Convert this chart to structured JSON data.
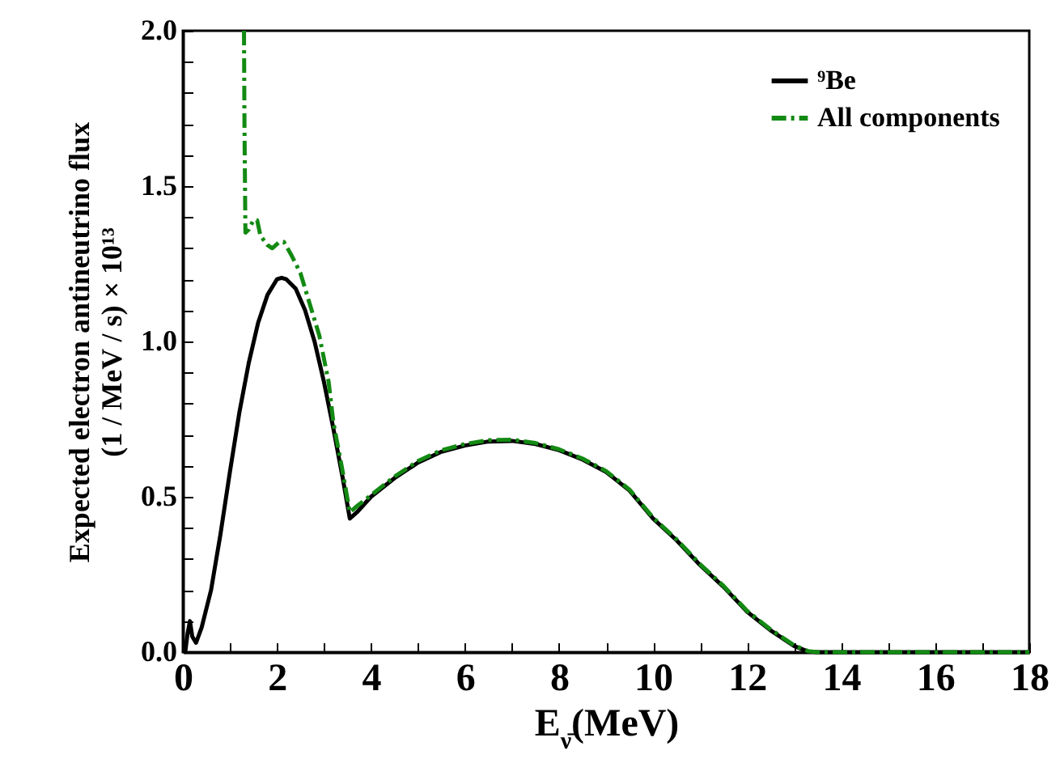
{
  "chart_data": {
    "type": "line",
    "xlabel": "E$_{ν̄}$(MeV)",
    "ylabel": "Expected electron antineutrino flux\n(1 / MeV / s) × 10¹³",
    "xlim": [
      0,
      18
    ],
    "ylim": [
      0,
      2.0
    ],
    "xticks": [
      0,
      {
        "value": 1,
        "label": null
      },
      2,
      {
        "value": 3,
        "label": null
      },
      4,
      {
        "value": 5,
        "label": null
      },
      6,
      {
        "value": 7,
        "label": null
      },
      8,
      {
        "value": 9,
        "label": null
      },
      10,
      {
        "value": 11,
        "label": null
      },
      12,
      {
        "value": 13,
        "label": null
      },
      14,
      {
        "value": 15,
        "label": null
      },
      16,
      {
        "value": 17,
        "label": null
      },
      18
    ],
    "yticks": [
      {
        "value": 0,
        "label": "0.0"
      },
      {
        "value": 0.1,
        "label": null
      },
      {
        "value": 0.2,
        "label": null
      },
      {
        "value": 0.3,
        "label": null
      },
      {
        "value": 0.4,
        "label": null
      },
      0.5,
      {
        "value": 0.6,
        "label": null
      },
      {
        "value": 0.7,
        "label": null
      },
      {
        "value": 0.8,
        "label": null
      },
      {
        "value": 0.9,
        "label": null
      },
      {
        "value": 1,
        "label": "1.0"
      },
      {
        "value": 1.1,
        "label": null
      },
      {
        "value": 1.2,
        "label": null
      },
      {
        "value": 1.3,
        "label": null
      },
      {
        "value": 1.4,
        "label": null
      },
      1.5,
      {
        "value": 1.6,
        "label": null
      },
      {
        "value": 1.7,
        "label": null
      },
      {
        "value": 1.8,
        "label": null
      },
      {
        "value": 1.9,
        "label": null
      },
      {
        "value": 2,
        "label": "2.0"
      }
    ],
    "grid": false,
    "legend": "top right",
    "marker": "none",
    "series": [
      {
        "name": "⁹Be",
        "color": "#000000",
        "line_style": "solid",
        "x": [
          0.05,
          0.1,
          0.15,
          0.2,
          0.28,
          0.4,
          0.6,
          0.8,
          1.0,
          1.2,
          1.4,
          1.6,
          1.8,
          2.0,
          2.1,
          2.2,
          2.4,
          2.6,
          2.8,
          3.0,
          3.2,
          3.4,
          3.55,
          3.7,
          4.0,
          4.5,
          5.0,
          5.5,
          6.0,
          6.5,
          7.0,
          7.5,
          8.0,
          8.5,
          9.0,
          9.5,
          10.0,
          10.5,
          11.0,
          11.5,
          12.0,
          12.5,
          13.0,
          13.3,
          13.5,
          18
        ],
        "values": [
          0,
          0.06,
          0.1,
          0.05,
          0.03,
          0.08,
          0.2,
          0.38,
          0.58,
          0.77,
          0.93,
          1.06,
          1.15,
          1.2,
          1.205,
          1.2,
          1.17,
          1.1,
          1.0,
          0.87,
          0.72,
          0.56,
          0.43,
          0.45,
          0.5,
          0.56,
          0.61,
          0.645,
          0.665,
          0.678,
          0.68,
          0.67,
          0.65,
          0.62,
          0.58,
          0.52,
          0.43,
          0.36,
          0.28,
          0.21,
          0.13,
          0.07,
          0.02,
          0.002,
          0,
          0
        ]
      },
      {
        "name": "All components",
        "color": "#138a13",
        "line_style": "dashdot",
        "x": [
          1.3,
          1.31,
          1.33,
          1.4,
          1.5,
          1.58,
          1.65,
          1.8,
          1.9,
          2.05,
          2.15,
          2.3,
          2.5,
          2.7,
          2.9,
          3.1,
          3.2,
          3.4,
          3.55,
          3.7,
          4.0,
          4.5,
          5.0,
          5.5,
          6.0,
          6.5,
          7.0,
          7.5,
          8.0,
          8.5,
          9.0,
          9.5,
          10.0,
          10.5,
          11.0,
          11.5,
          12.0,
          12.5,
          13.0,
          13.3,
          13.5,
          18
        ],
        "values": [
          2.0,
          1.7,
          1.35,
          1.36,
          1.39,
          1.39,
          1.34,
          1.31,
          1.3,
          1.32,
          1.32,
          1.28,
          1.22,
          1.12,
          1.02,
          0.87,
          0.74,
          0.58,
          0.45,
          0.47,
          0.505,
          0.565,
          0.615,
          0.65,
          0.67,
          0.682,
          0.684,
          0.673,
          0.653,
          0.623,
          0.583,
          0.523,
          0.433,
          0.363,
          0.283,
          0.213,
          0.133,
          0.073,
          0.022,
          0.003,
          0,
          0
        ]
      }
    ]
  }
}
